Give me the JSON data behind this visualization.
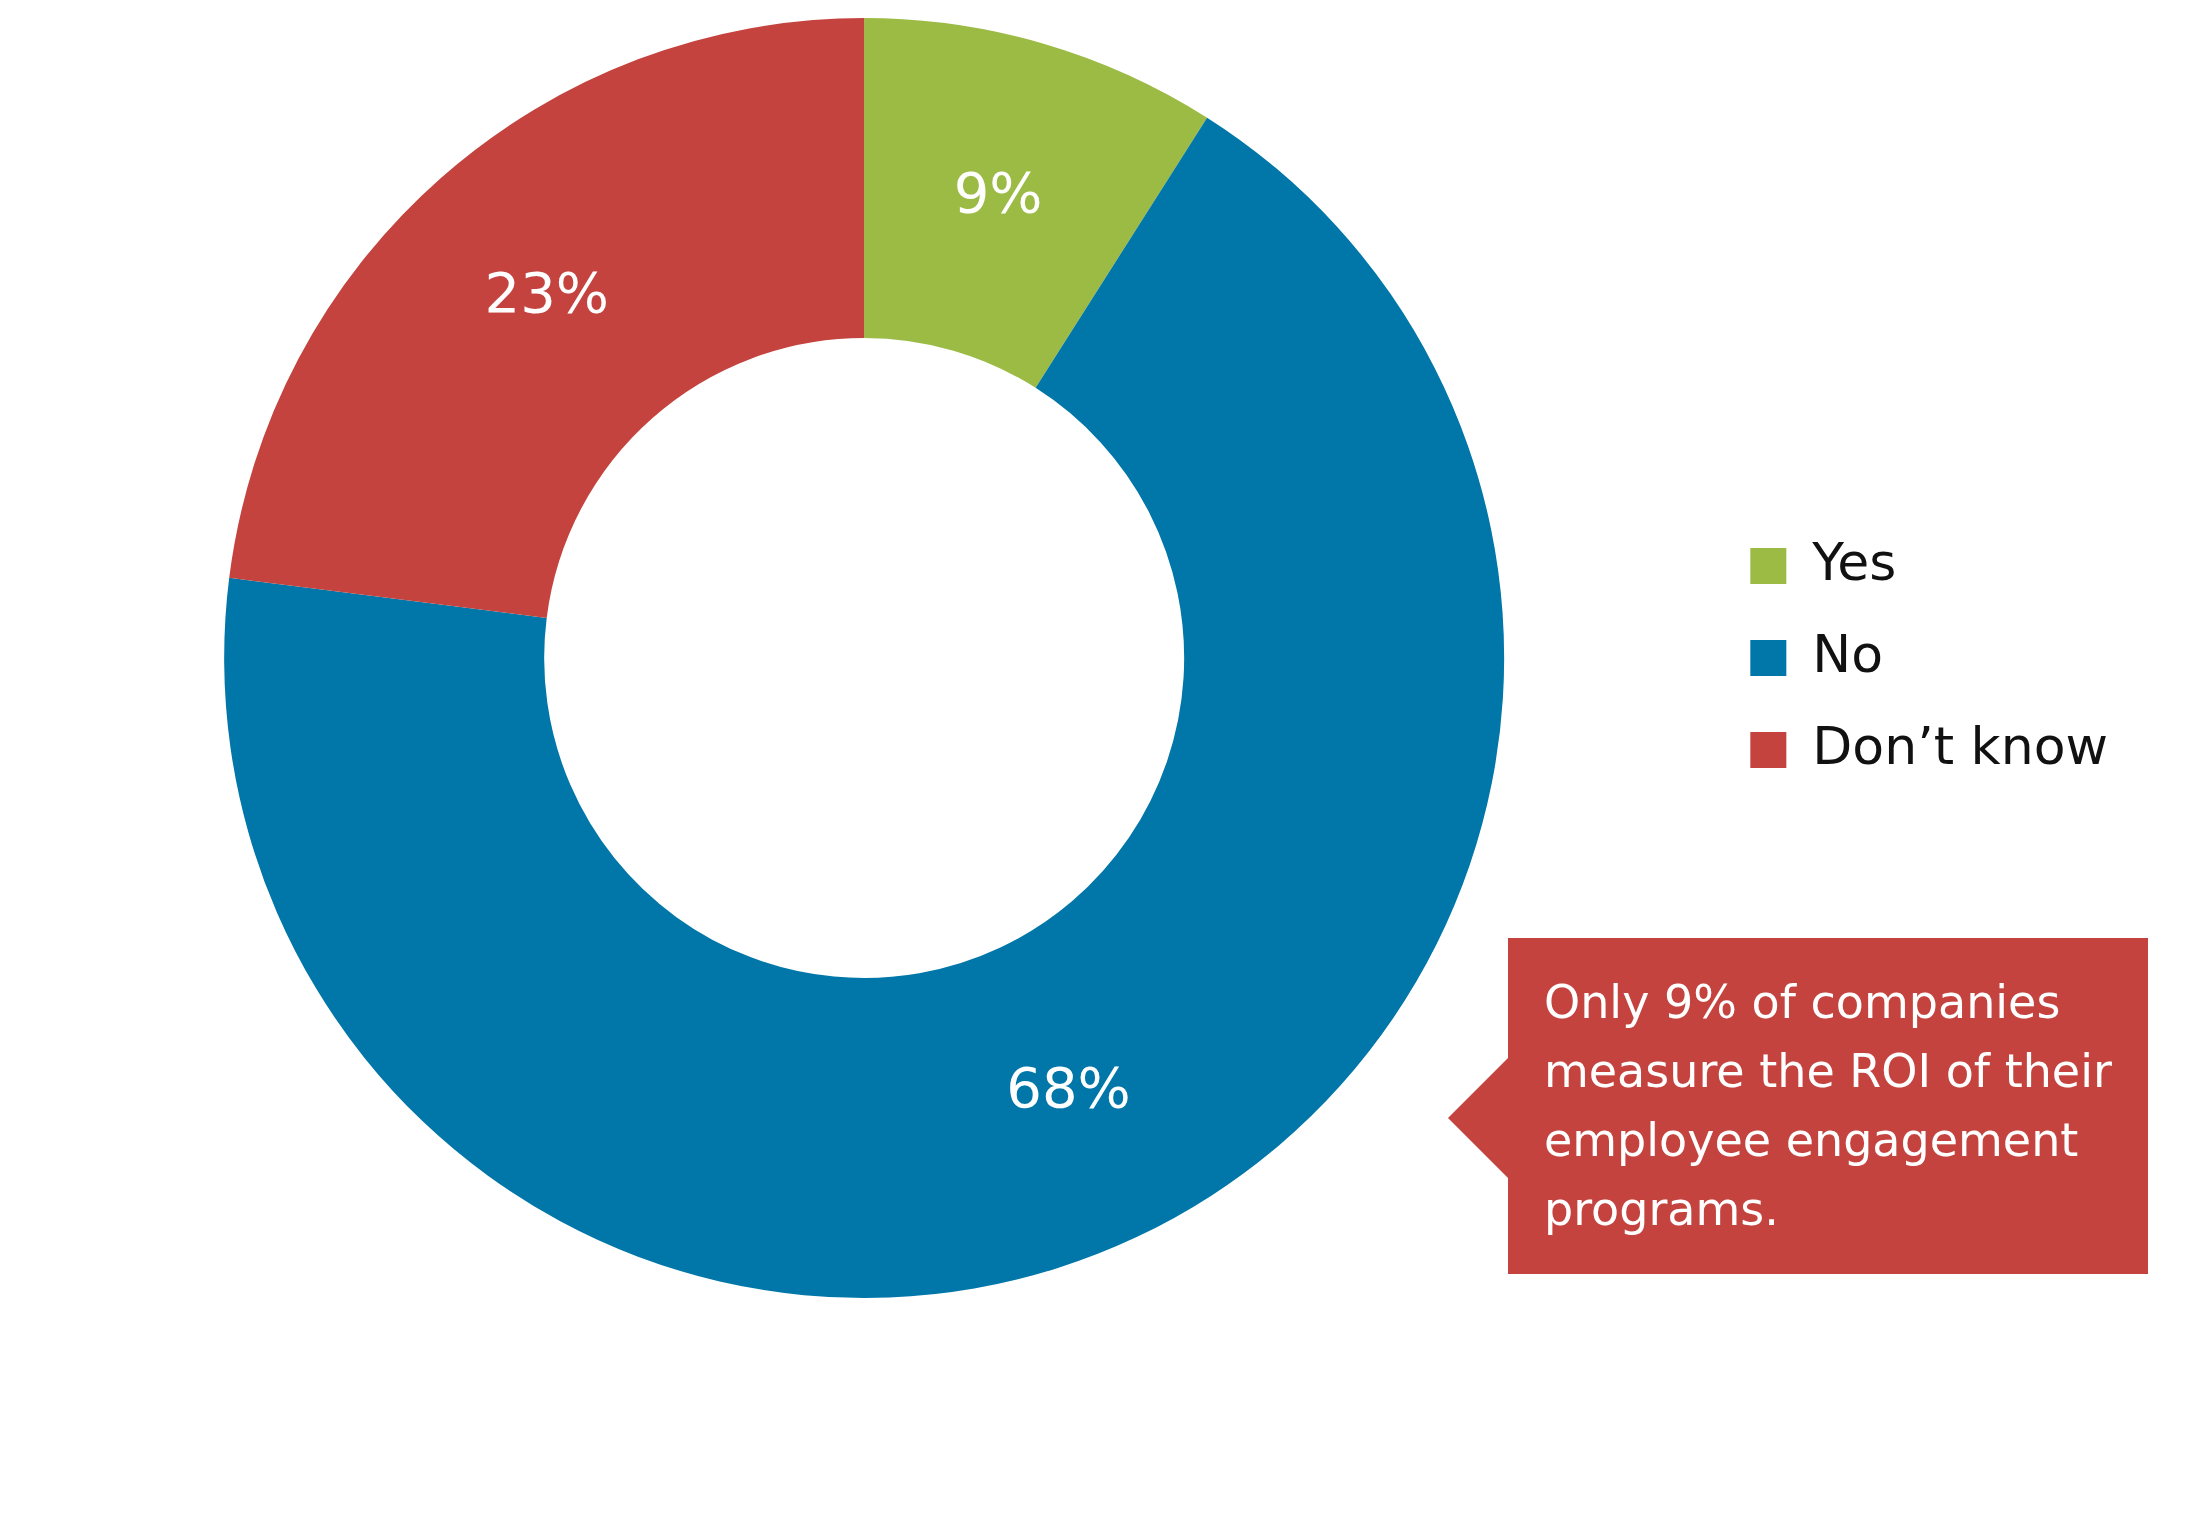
{
  "chart_data": {
    "type": "donut",
    "categories": [
      "Yes",
      "No",
      "Don’t know"
    ],
    "values": [
      9,
      68,
      23
    ],
    "colors": [
      "#9bbb45",
      "#0176a8",
      "#c4433e"
    ],
    "value_labels": [
      "9%",
      "68%",
      "23%"
    ],
    "legend": "right",
    "annotations": [
      "Only 9% of companies measure the ROI of their employee engagement programs."
    ]
  }
}
